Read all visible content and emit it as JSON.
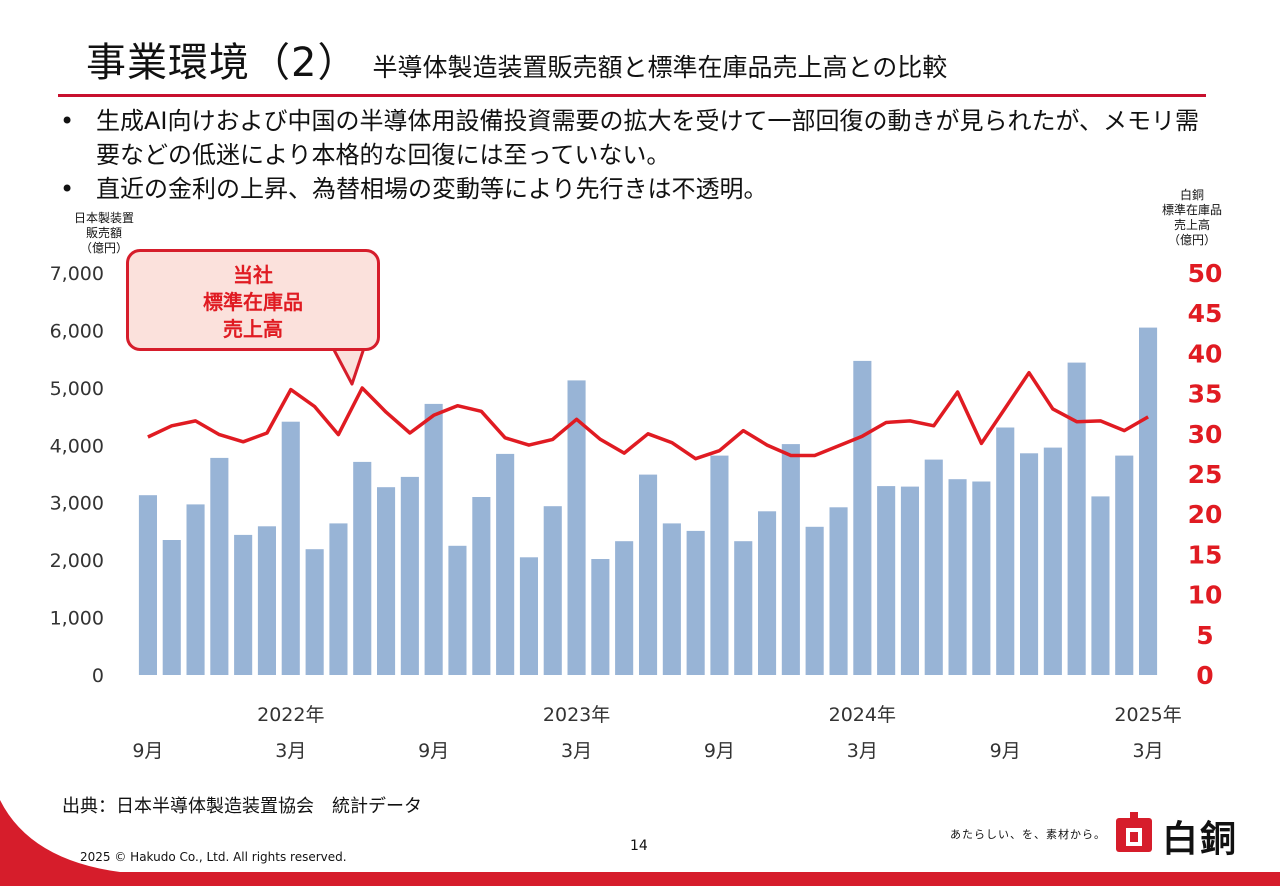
{
  "title": {
    "main": "事業環境（2）",
    "sub": "半導体製造装置販売額と標準在庫品売上高との比較"
  },
  "bullets": [
    "生成AI向けおよび中国の半導体用設備投資需要の拡大を受けて一部回復の動きが見られたが、メモリ需要などの低迷により本格的な回復には至っていない。",
    "直近の金利の上昇、為替相場の変動等により先行きは不透明。"
  ],
  "bullet_symbol": "•",
  "ylabel_left": [
    "日本製装置",
    "販売額",
    "（億円）"
  ],
  "ylabel_right": [
    "白銅",
    "標準在庫品",
    "売上高",
    "（億円）"
  ],
  "callout_lines": [
    "当社",
    "標準在庫品",
    "売上高"
  ],
  "source": "出典：日本半導体製造装置協会　統計データ",
  "page_number": "14",
  "copyright": "2025 © Hakudo Co., Ltd. All rights reserved.",
  "tagline": "あたらしい、を、素材から。",
  "brand": "白銅",
  "colors": {
    "bar": "#98b4d6",
    "line": "#e01b22",
    "accent": "#d61d2b"
  },
  "chart_data": {
    "type": "bar",
    "x_month_labels": [
      "9月",
      "3月",
      "9月",
      "3月",
      "9月",
      "3月",
      "9月",
      "3月"
    ],
    "x_month_label_index": [
      0,
      6,
      12,
      18,
      24,
      30,
      36,
      42
    ],
    "x_year_labels": [
      "2022年",
      "2023年",
      "2024年",
      "2025年"
    ],
    "x_year_label_index": [
      6,
      18,
      30,
      42
    ],
    "series": [
      {
        "axis": "left",
        "kind": "bar",
        "values": [
          3130,
          2350,
          2970,
          3780,
          2440,
          2590,
          4410,
          2190,
          2640,
          3710,
          3270,
          3450,
          4720,
          2250,
          3100,
          3850,
          2050,
          2940,
          5130,
          2020,
          2330,
          3490,
          2640,
          2510,
          3820,
          2330,
          2850,
          4020,
          2580,
          2920,
          5470,
          3290,
          3280,
          3750,
          3410,
          3370,
          4310,
          3860,
          3960,
          5440,
          3110,
          3820,
          6050
        ]
      },
      {
        "axis": "right",
        "kind": "line",
        "values": [
          29.6,
          31.0,
          31.6,
          29.9,
          29.0,
          30.1,
          35.5,
          33.4,
          29.9,
          35.7,
          32.7,
          30.1,
          32.3,
          33.5,
          32.8,
          29.5,
          28.6,
          29.3,
          31.8,
          29.3,
          27.6,
          30.0,
          28.9,
          26.9,
          27.9,
          30.4,
          28.6,
          27.3,
          27.3,
          28.5,
          29.7,
          31.4,
          31.6,
          31.0,
          35.2,
          28.8,
          33.2,
          37.6,
          33.1,
          31.5,
          31.6,
          30.4,
          32.1
        ]
      }
    ],
    "y_left": {
      "min": 0,
      "max": 7000,
      "ticks": [
        "0",
        "1,000",
        "2,000",
        "3,000",
        "4,000",
        "5,000",
        "6,000",
        "7,000"
      ]
    },
    "y_right": {
      "min": 0,
      "max": 50,
      "ticks": [
        "0",
        "5",
        "10",
        "15",
        "20",
        "25",
        "30",
        "35",
        "40",
        "45",
        "50"
      ]
    },
    "grid": false
  }
}
